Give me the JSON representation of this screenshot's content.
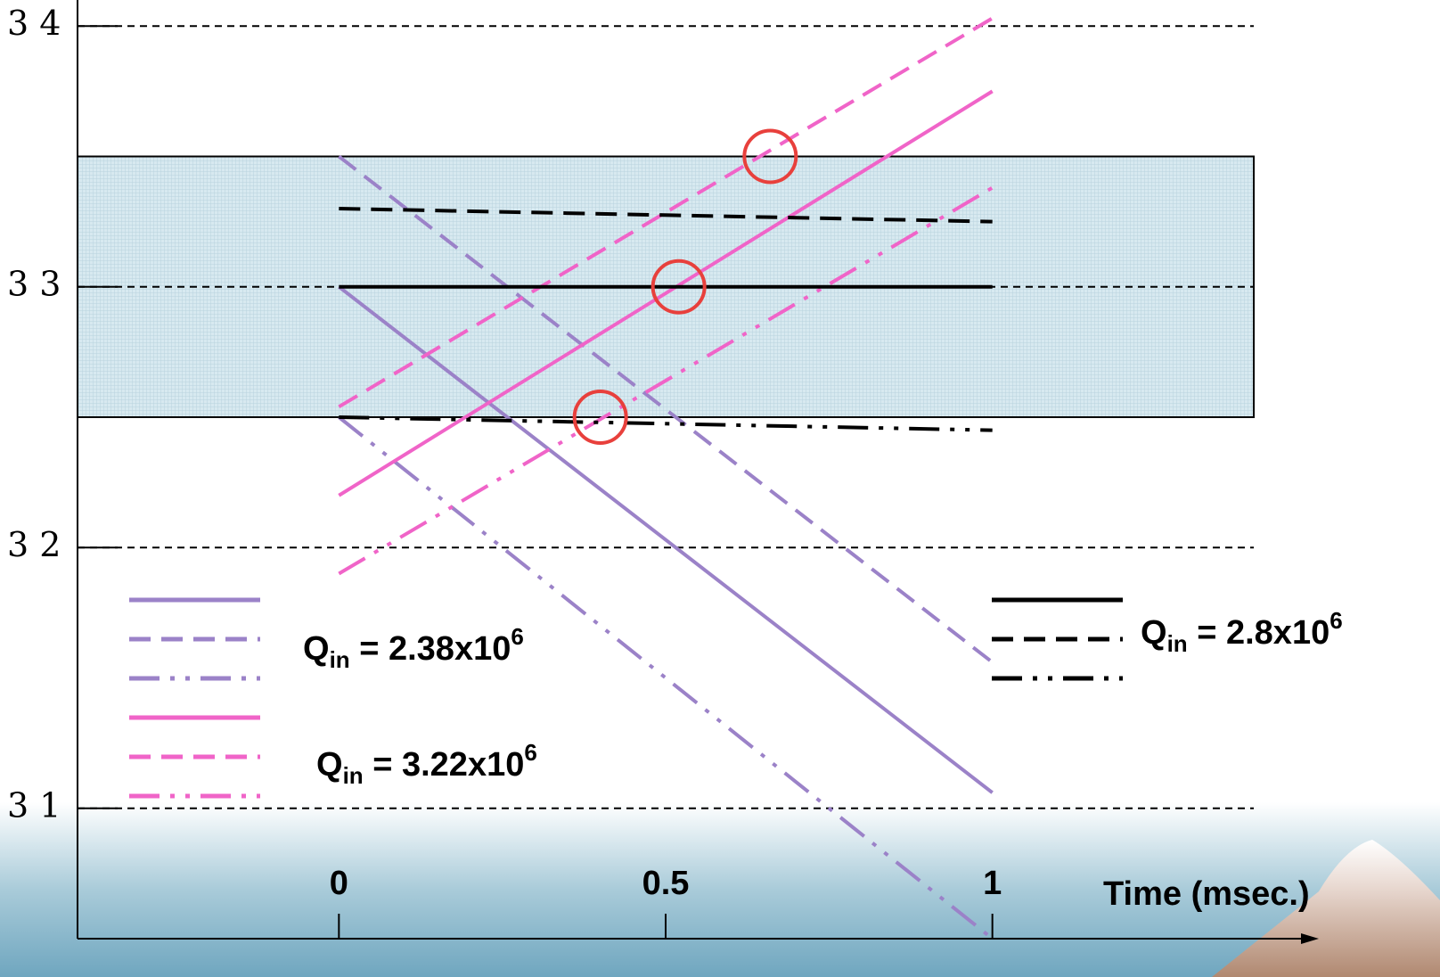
{
  "chart_data": {
    "type": "line",
    "x_label": "Time (msec.)",
    "x": [
      0,
      1
    ],
    "xlim": [
      -0.4,
      1.4
    ],
    "xticks": [
      0,
      0.5,
      1
    ],
    "ylim": [
      30.5,
      34.1
    ],
    "yticks": [
      {
        "value": 34,
        "label": "3 4"
      },
      {
        "value": 33,
        "label": "3 3"
      },
      {
        "value": 32,
        "label": "3 2"
      },
      {
        "value": 31,
        "label": "3 1"
      }
    ],
    "grid": true,
    "shaded_range": {
      "ylim": [
        32.5,
        33.5
      ],
      "color": "#cfe6ee"
    },
    "series_groups": [
      {
        "label": {
          "symbol": "Q",
          "subscript": "in",
          "text": " = 2.38x10",
          "superscript": "6"
        },
        "color": "#9b82c8",
        "series": [
          {
            "style": "solid",
            "values": [
              33,
              31.06
            ]
          },
          {
            "style": "dashed",
            "values": [
              33.5,
              31.56
            ]
          },
          {
            "style": "dashdot",
            "values": [
              32.5,
              30.5
            ]
          }
        ]
      },
      {
        "label": {
          "symbol": "Q",
          "subscript": "in",
          "text": " = 3.22x10",
          "superscript": "6"
        },
        "color": "#f064c8",
        "series": [
          {
            "style": "solid",
            "values": [
              32.2,
              33.75
            ]
          },
          {
            "style": "dashed",
            "values": [
              32.54,
              34.03
            ]
          },
          {
            "style": "dashdot",
            "values": [
              31.9,
              33.38
            ]
          }
        ]
      },
      {
        "label": {
          "symbol": "Q",
          "subscript": "in",
          "text": " = 2.8x10",
          "superscript": "6"
        },
        "color": "#000000",
        "series": [
          {
            "style": "solid",
            "values": [
              33,
              33
            ]
          },
          {
            "style": "dashed",
            "values": [
              33.3,
              33.25
            ]
          },
          {
            "style": "dashdot",
            "values": [
              32.5,
              32.45
            ]
          }
        ]
      }
    ],
    "highlight_points": {
      "color": "#e8403c",
      "x": [
        0.66,
        0.52,
        0.4
      ],
      "y": [
        33.5,
        33,
        32.5
      ]
    }
  }
}
